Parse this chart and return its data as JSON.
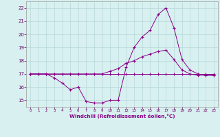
{
  "xlabel": "Windchill (Refroidissement éolien,°C)",
  "bg_color": "#d8f0f0",
  "grid_color": "#b8d8d8",
  "line_color": "#880088",
  "xlim": [
    -0.5,
    23.5
  ],
  "ylim": [
    14.5,
    22.5
  ],
  "yticks": [
    15,
    16,
    17,
    18,
    19,
    20,
    21,
    22
  ],
  "xticks": [
    0,
    1,
    2,
    3,
    4,
    5,
    6,
    7,
    8,
    9,
    10,
    11,
    12,
    13,
    14,
    15,
    16,
    17,
    18,
    19,
    20,
    21,
    22,
    23
  ],
  "series1_x": [
    0,
    1,
    2,
    3,
    4,
    5,
    6,
    7,
    8,
    9,
    10,
    11,
    12,
    13,
    14,
    15,
    16,
    17,
    18,
    19,
    20,
    21,
    22,
    23
  ],
  "series1_y": [
    17.0,
    17.0,
    17.0,
    17.0,
    17.0,
    17.0,
    17.0,
    17.0,
    17.0,
    17.0,
    17.0,
    17.0,
    17.0,
    17.0,
    17.0,
    17.0,
    17.0,
    17.0,
    17.0,
    17.0,
    17.0,
    17.0,
    17.0,
    17.0
  ],
  "series2_x": [
    0,
    1,
    2,
    3,
    4,
    5,
    6,
    7,
    8,
    9,
    10,
    11,
    12,
    13,
    14,
    15,
    16,
    17,
    18,
    19,
    20,
    21,
    22,
    23
  ],
  "series2_y": [
    17.0,
    17.0,
    17.0,
    16.7,
    16.3,
    15.8,
    16.0,
    14.9,
    14.8,
    14.8,
    15.0,
    15.0,
    17.5,
    19.0,
    19.8,
    20.3,
    21.5,
    22.0,
    20.5,
    18.1,
    17.3,
    17.0,
    16.9,
    16.9
  ],
  "series3_x": [
    0,
    1,
    2,
    3,
    4,
    5,
    6,
    7,
    8,
    9,
    10,
    11,
    12,
    13,
    14,
    15,
    16,
    17,
    18,
    19,
    20,
    21,
    22,
    23
  ],
  "series3_y": [
    17.0,
    17.0,
    17.0,
    17.0,
    17.0,
    17.0,
    17.0,
    17.0,
    17.0,
    17.0,
    17.2,
    17.4,
    17.8,
    18.0,
    18.3,
    18.5,
    18.7,
    18.8,
    18.1,
    17.3,
    17.0,
    16.9,
    16.9,
    16.9
  ]
}
